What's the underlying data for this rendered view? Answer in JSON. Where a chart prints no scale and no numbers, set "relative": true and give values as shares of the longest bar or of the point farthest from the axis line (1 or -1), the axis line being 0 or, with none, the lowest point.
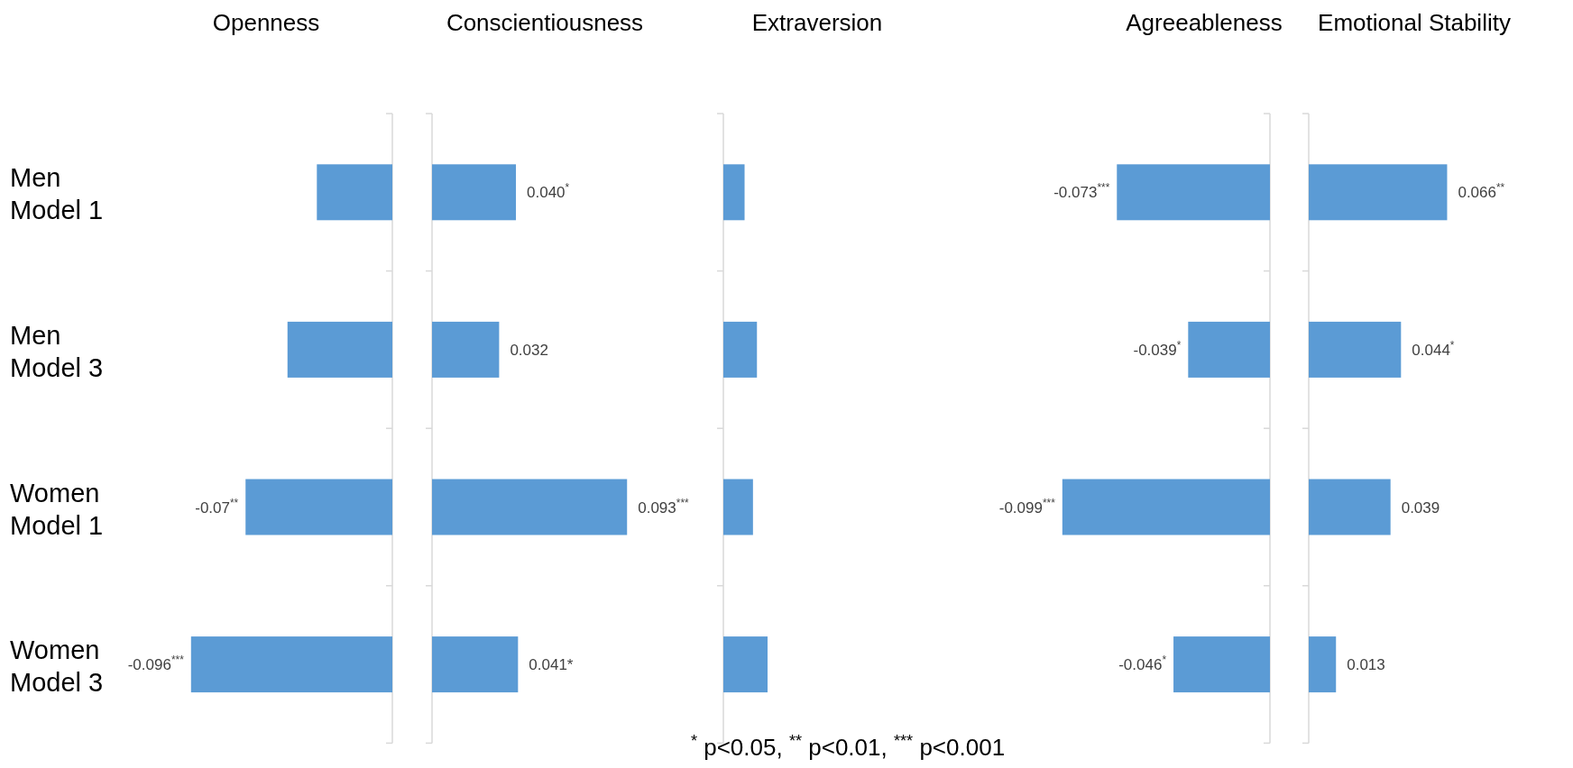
{
  "chart_data": [
    {
      "type": "bar",
      "orientation": "horizontal",
      "title": "Openness",
      "categories": [
        "Men Model 1",
        "Men Model 3",
        "Women Model 1",
        "Women Model 3"
      ],
      "values": [
        -0.036,
        -0.05,
        -0.07,
        -0.096
      ],
      "value_labels": [
        null,
        null,
        "-0.07$^{**}$",
        "-0.096$^{***}$"
      ],
      "color": "#5b9bd5",
      "tick_labels": "y",
      "annotations": [
        "$^{*}$ p<0.05, $^{**}$ p<0.01, $^{***}$ p<0.001"
      ]
    },
    {
      "type": "bar",
      "orientation": "horizontal",
      "title": "Conscientiousness",
      "categories": [
        null,
        null,
        null,
        null
      ],
      "values": [
        0.04,
        0.032,
        0.093,
        0.041
      ],
      "value_labels": [
        "0.040$^{*}$",
        "0.032",
        "0.093$^{***}$",
        "0.041*"
      ],
      "color": "#5b9bd5",
      "tick_labels": false
    },
    {
      "type": "bar",
      "orientation": "horizontal",
      "title": "Extraversion",
      "categories": [
        null,
        null,
        null,
        null
      ],
      "values": [
        0.48,
        0.76,
        0.67,
        1
      ],
      "relative": true,
      "color": "#5b9bd5",
      "tick_labels": false
    },
    {
      "type": "bar",
      "orientation": "horizontal",
      "title": "Agreeableness",
      "categories": [
        null,
        null,
        null,
        null
      ],
      "values": [
        -0.073,
        -0.039,
        -0.099,
        -0.046
      ],
      "value_labels": [
        "-0.073$^{***}$",
        "-0.039$^{*}$",
        "-0.099$^{***}$",
        "-0.046$^{*}$"
      ],
      "color": "#5b9bd5",
      "tick_labels": false
    },
    {
      "type": "bar",
      "orientation": "horizontal",
      "title": "Emotional Stability",
      "categories": [
        null,
        null,
        null,
        null
      ],
      "values": [
        0.066,
        0.044,
        0.039,
        0.013
      ],
      "value_labels": [
        "0.066$^{**}$",
        "0.044$^{*}$",
        "0.039",
        "0.013"
      ],
      "color": "#5b9bd5",
      "tick_labels": false
    }
  ]
}
